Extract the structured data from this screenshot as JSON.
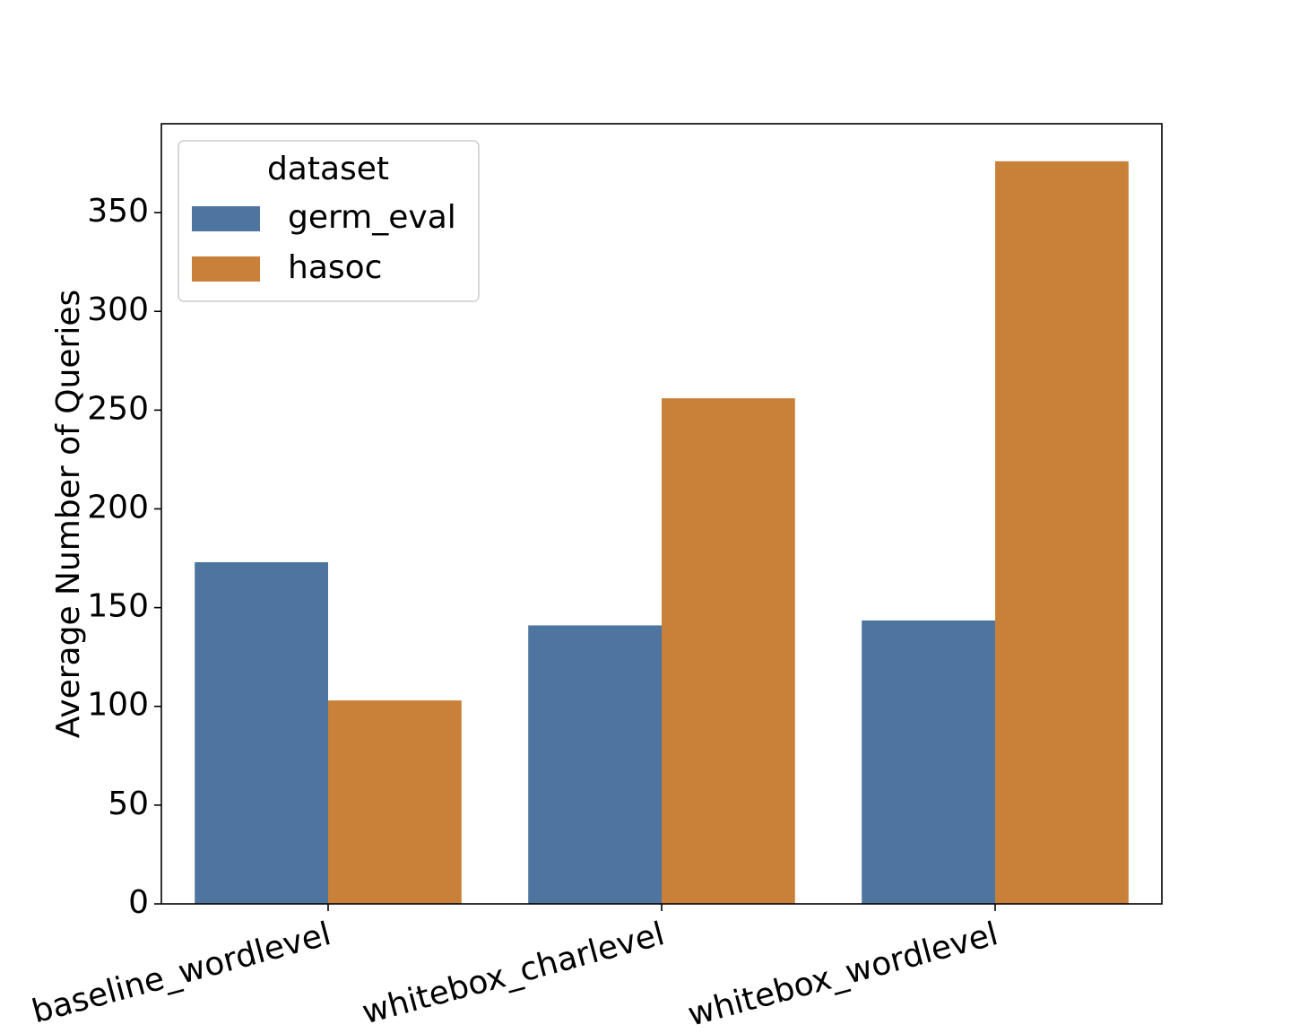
{
  "chart_data": {
    "type": "bar",
    "categories": [
      "baseline_wordlevel",
      "whitebox_charlevel",
      "whitebox_wordlevel"
    ],
    "series": [
      {
        "name": "germ_eval",
        "values": [
          173,
          141,
          143.5
        ],
        "color": "#4e74a0"
      },
      {
        "name": "hasoc",
        "values": [
          103,
          256,
          376
        ],
        "color": "#c98139"
      }
    ],
    "ylabel": "Average Number of Queries",
    "xlabel": "",
    "ylim": [
      0,
      395
    ],
    "yticks": [
      0,
      50,
      100,
      150,
      200,
      250,
      300,
      350
    ],
    "legend": {
      "title": "dataset",
      "placement": "top-left"
    },
    "grid": false
  }
}
